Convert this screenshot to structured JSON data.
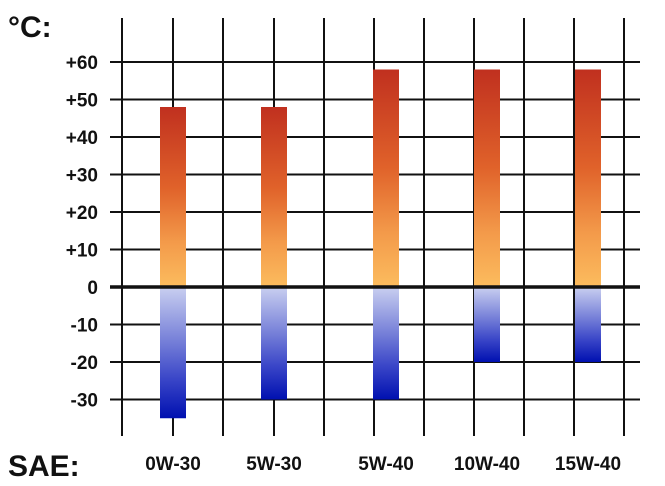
{
  "chart_data": {
    "type": "bar",
    "y_unit_label": "°C:",
    "x_prefix_label": "SAE:",
    "categories": [
      "0W-30",
      "5W-30",
      "5W-40",
      "10W-40",
      "15W-40"
    ],
    "series": [
      {
        "low": -35,
        "high": 48
      },
      {
        "low": -30,
        "high": 48
      },
      {
        "low": -30,
        "high": 58
      },
      {
        "low": -20,
        "high": 58
      },
      {
        "low": -20,
        "high": 58
      }
    ],
    "yticks": [
      "+60",
      "+50",
      "+40",
      "+30",
      "+20",
      "+10",
      "0",
      "-10",
      "-20",
      "-30"
    ],
    "ytick_values": [
      60,
      50,
      40,
      30,
      20,
      10,
      0,
      -10,
      -20,
      -30
    ],
    "ylim": [
      -40,
      70
    ],
    "grid": true,
    "colors": {
      "hot_top": "#c0301f",
      "hot_mid": "#e0622a",
      "warm": "#fcbc5e",
      "cool": "#c9cff0",
      "cold_mid": "#3a46c8",
      "cold": "#0010b0",
      "grid": "#111111"
    }
  }
}
